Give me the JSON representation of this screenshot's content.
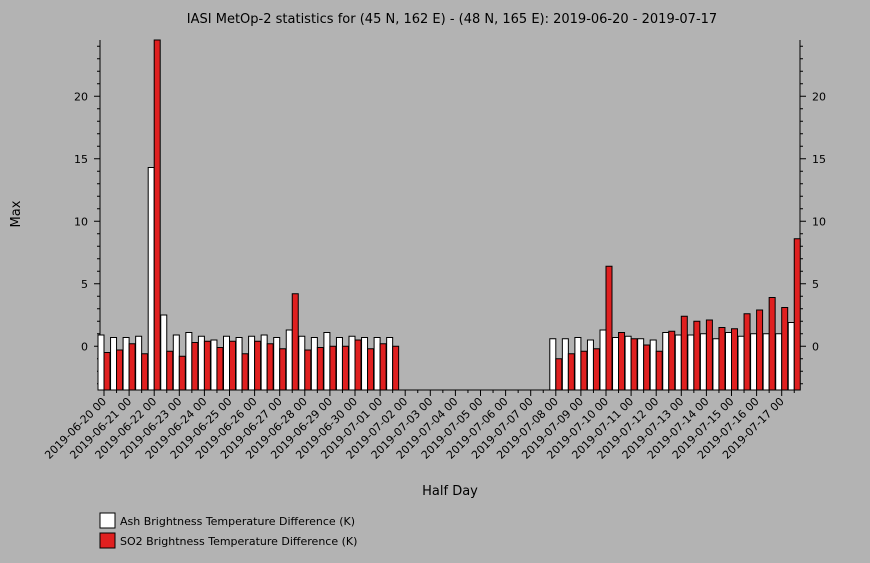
{
  "chart_data": {
    "type": "bar",
    "title": "IASI MetOp-2 statistics for (45 N, 162 E) - (48 N, 165 E): 2019-06-20 - 2019-07-17",
    "xlabel": "Half Day",
    "ylabel": "Max",
    "ylim": [
      -3.5,
      24.5
    ],
    "yticks": [
      0,
      5,
      10,
      15,
      20
    ],
    "grid": false,
    "legend_position": "bottom-left",
    "categories": [
      "2019-06-20 00",
      "2019-06-20 12",
      "2019-06-21 00",
      "2019-06-21 12",
      "2019-06-22 00",
      "2019-06-22 12",
      "2019-06-23 00",
      "2019-06-23 12",
      "2019-06-24 00",
      "2019-06-24 12",
      "2019-06-25 00",
      "2019-06-25 12",
      "2019-06-26 00",
      "2019-06-26 12",
      "2019-06-27 00",
      "2019-06-27 12",
      "2019-06-28 00",
      "2019-06-28 12",
      "2019-06-29 00",
      "2019-06-29 12",
      "2019-06-30 00",
      "2019-06-30 12",
      "2019-07-01 00",
      "2019-07-01 12",
      "2019-07-02 00",
      "2019-07-02 12",
      "2019-07-03 00",
      "2019-07-03 12",
      "2019-07-04 00",
      "2019-07-04 12",
      "2019-07-05 00",
      "2019-07-05 12",
      "2019-07-06 00",
      "2019-07-06 12",
      "2019-07-07 00",
      "2019-07-07 12",
      "2019-07-08 00",
      "2019-07-08 12",
      "2019-07-09 00",
      "2019-07-09 12",
      "2019-07-10 00",
      "2019-07-10 12",
      "2019-07-11 00",
      "2019-07-11 12",
      "2019-07-12 00",
      "2019-07-12 12",
      "2019-07-13 00",
      "2019-07-13 12",
      "2019-07-14 00",
      "2019-07-14 12",
      "2019-07-15 00",
      "2019-07-15 12",
      "2019-07-16 00",
      "2019-07-16 12",
      "2019-07-17 00",
      "2019-07-17 12"
    ],
    "tick_labels": [
      "2019-06-20 00",
      "2019-06-21 00",
      "2019-06-22 00",
      "2019-06-23 00",
      "2019-06-24 00",
      "2019-06-25 00",
      "2019-06-26 00",
      "2019-06-27 00",
      "2019-06-28 00",
      "2019-06-29 00",
      "2019-06-30 00",
      "2019-07-01 00",
      "2019-07-02 00",
      "2019-07-03 00",
      "2019-07-04 00",
      "2019-07-05 00",
      "2019-07-06 00",
      "2019-07-07 00",
      "2019-07-08 00",
      "2019-07-09 00",
      "2019-07-10 00",
      "2019-07-11 00",
      "2019-07-12 00",
      "2019-07-13 00",
      "2019-07-14 00",
      "2019-07-15 00",
      "2019-07-16 00",
      "2019-07-17 00"
    ],
    "series": [
      {
        "name": "Ash Brightness Temperature Difference (K)",
        "color": "#ffffff",
        "values": [
          0.9,
          0.7,
          0.7,
          0.8,
          14.3,
          2.5,
          0.9,
          1.1,
          0.8,
          0.5,
          0.8,
          0.7,
          0.8,
          0.9,
          0.7,
          1.3,
          0.8,
          0.7,
          1.1,
          0.7,
          0.8,
          0.7,
          0.7,
          0.7,
          null,
          null,
          null,
          null,
          null,
          null,
          null,
          null,
          null,
          null,
          null,
          null,
          0.6,
          0.6,
          0.7,
          0.5,
          1.3,
          0.7,
          0.8,
          0.6,
          0.5,
          1.1,
          0.9,
          0.9,
          1.0,
          0.6,
          1.1,
          0.8,
          1.0,
          1.0,
          1.0,
          1.9
        ]
      },
      {
        "name": "SO2 Brightness Temperature Difference (K)",
        "color": "#e02020",
        "values": [
          -0.5,
          -0.3,
          0.2,
          -0.6,
          24.5,
          -0.4,
          -0.8,
          0.3,
          0.4,
          -0.1,
          0.4,
          -0.6,
          0.4,
          0.2,
          -0.2,
          4.2,
          -0.3,
          -0.1,
          0.0,
          0.0,
          0.5,
          -0.2,
          0.2,
          0.0,
          null,
          null,
          null,
          null,
          null,
          null,
          null,
          null,
          null,
          null,
          null,
          null,
          -1.0,
          -0.6,
          -0.4,
          -0.2,
          6.4,
          1.1,
          0.6,
          0.1,
          -0.4,
          1.2,
          2.4,
          2.0,
          2.1,
          1.5,
          1.4,
          2.6,
          2.9,
          3.9,
          3.1,
          8.6
        ]
      }
    ]
  }
}
